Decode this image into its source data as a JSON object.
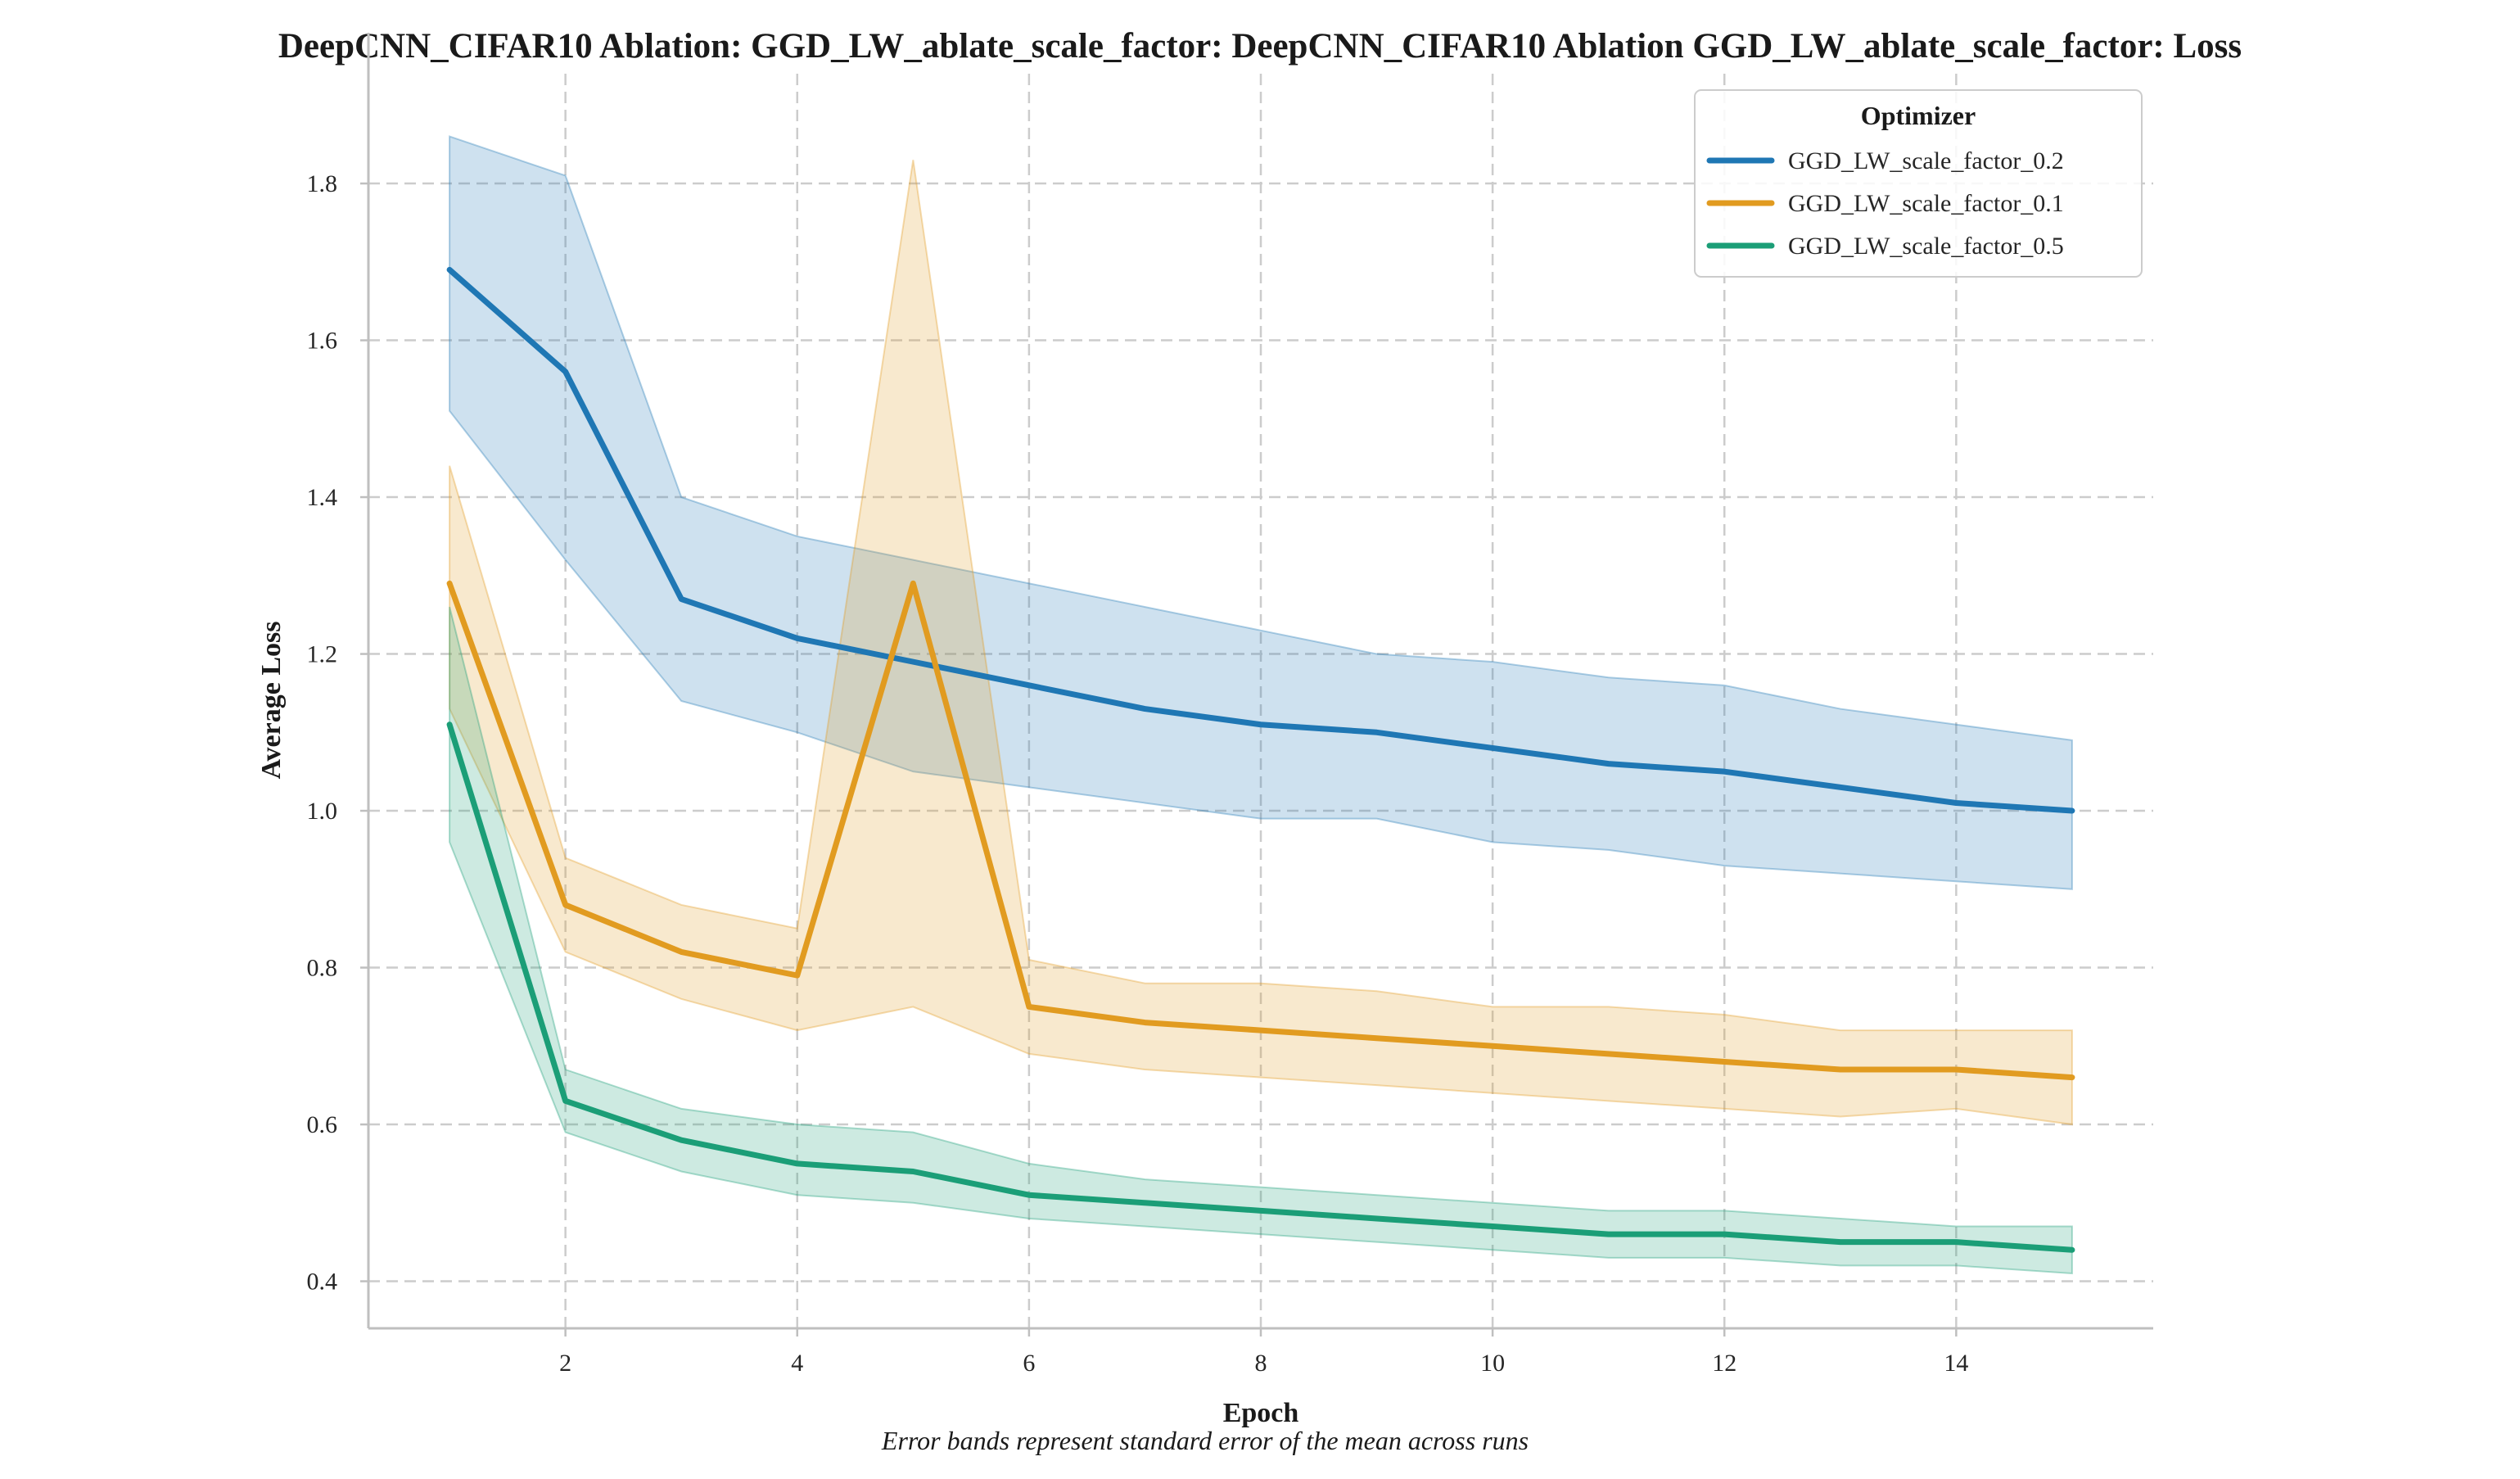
{
  "chart_data": {
    "type": "line",
    "title": "DeepCNN_CIFAR10 Ablation: GGD_LW_ablate_scale_factor: DeepCNN_CIFAR10 Ablation GGD_LW_ablate_scale_factor: Loss",
    "xlabel": "Epoch",
    "ylabel": "Average Loss",
    "caption": "Error bands represent standard error of the mean across runs",
    "xlim": [
      0.3,
      15.7
    ],
    "ylim": [
      0.34,
      1.94
    ],
    "xticks": [
      2,
      4,
      6,
      8,
      10,
      12,
      14
    ],
    "xtick_labels": [
      "2",
      "4",
      "6",
      "8",
      "10",
      "12",
      "14"
    ],
    "yticks": [
      0.4,
      0.6,
      0.8,
      1.0,
      1.2,
      1.4,
      1.6,
      1.8
    ],
    "ytick_labels": [
      "0.4",
      "0.6",
      "0.8",
      "1.0",
      "1.2",
      "1.4",
      "1.6",
      "1.8"
    ],
    "grid": true,
    "legend": {
      "title": "Optimizer",
      "placement": "top-right"
    },
    "x": [
      1,
      2,
      3,
      4,
      5,
      6,
      7,
      8,
      9,
      10,
      11,
      12,
      13,
      14,
      15
    ],
    "series": [
      {
        "name": "GGD_LW_scale_factor_0.2",
        "color": "#1f77b4",
        "values": [
          1.69,
          1.56,
          1.27,
          1.22,
          1.19,
          1.16,
          1.13,
          1.11,
          1.1,
          1.08,
          1.06,
          1.05,
          1.03,
          1.01,
          1.0
        ],
        "lower": [
          1.51,
          1.32,
          1.14,
          1.1,
          1.05,
          1.03,
          1.01,
          0.99,
          0.99,
          0.96,
          0.95,
          0.93,
          0.92,
          0.91,
          0.9
        ],
        "upper": [
          1.86,
          1.81,
          1.4,
          1.35,
          1.32,
          1.29,
          1.26,
          1.23,
          1.2,
          1.19,
          1.17,
          1.16,
          1.13,
          1.11,
          1.09
        ]
      },
      {
        "name": "GGD_LW_scale_factor_0.1",
        "color": "#e19b20",
        "values": [
          1.29,
          0.88,
          0.82,
          0.79,
          1.29,
          0.75,
          0.73,
          0.72,
          0.71,
          0.7,
          0.69,
          0.68,
          0.67,
          0.67,
          0.66
        ],
        "lower": [
          1.13,
          0.82,
          0.76,
          0.72,
          0.75,
          0.69,
          0.67,
          0.66,
          0.65,
          0.64,
          0.63,
          0.62,
          0.61,
          0.62,
          0.6
        ],
        "upper": [
          1.44,
          0.94,
          0.88,
          0.85,
          1.83,
          0.81,
          0.78,
          0.78,
          0.77,
          0.75,
          0.75,
          0.74,
          0.72,
          0.72,
          0.72
        ]
      },
      {
        "name": "GGD_LW_scale_factor_0.5",
        "color": "#1b9e77",
        "values": [
          1.11,
          0.63,
          0.58,
          0.55,
          0.54,
          0.51,
          0.5,
          0.49,
          0.48,
          0.47,
          0.46,
          0.46,
          0.45,
          0.45,
          0.44
        ],
        "lower": [
          0.96,
          0.59,
          0.54,
          0.51,
          0.5,
          0.48,
          0.47,
          0.46,
          0.45,
          0.44,
          0.43,
          0.43,
          0.42,
          0.42,
          0.41
        ],
        "upper": [
          1.26,
          0.67,
          0.62,
          0.6,
          0.59,
          0.55,
          0.53,
          0.52,
          0.51,
          0.5,
          0.49,
          0.49,
          0.48,
          0.47,
          0.47
        ]
      }
    ]
  }
}
